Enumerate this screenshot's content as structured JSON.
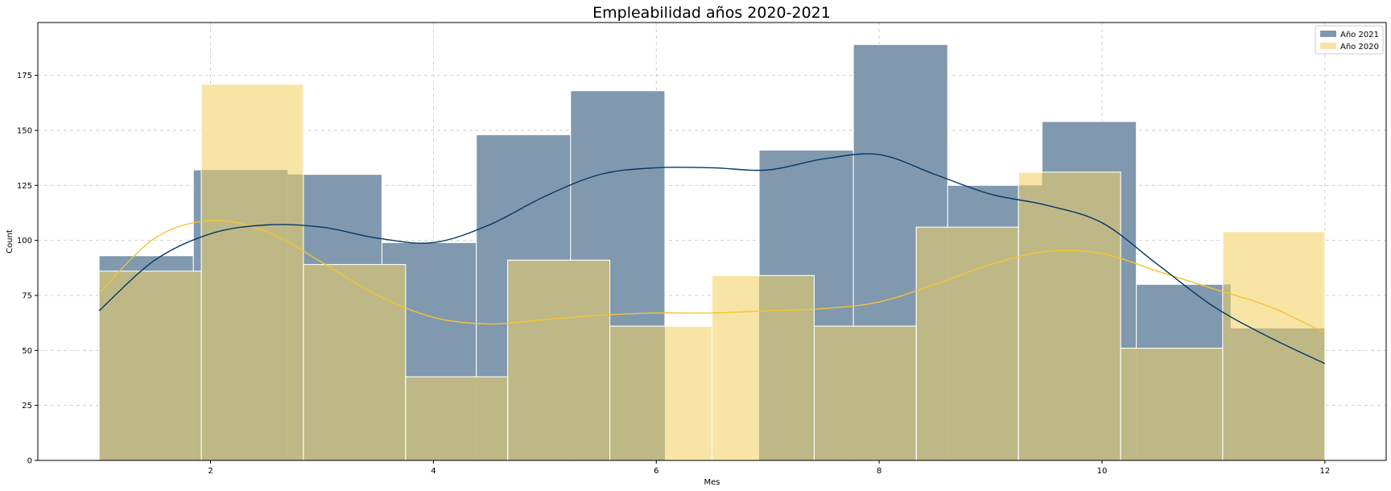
{
  "chart_data": {
    "type": "bar",
    "title": "Empleabilidad años 2020-2021",
    "xlabel": "Mes",
    "ylabel": "Count",
    "xlim": [
      0.45,
      12.55
    ],
    "ylim": [
      0,
      199
    ],
    "xticks": [
      2,
      4,
      6,
      8,
      10,
      12
    ],
    "yticks": [
      0,
      25,
      50,
      75,
      100,
      125,
      150,
      175
    ],
    "grid": true,
    "legend_position": "top-right",
    "series": [
      {
        "name": "Año 2021",
        "color": "#033866",
        "bar_color": "#8199af",
        "bins": [
          {
            "x0": 1.0,
            "x1": 1.846,
            "value": 93
          },
          {
            "x0": 1.846,
            "x1": 2.692,
            "value": 132
          },
          {
            "x0": 2.692,
            "x1": 3.538,
            "value": 130
          },
          {
            "x0": 3.538,
            "x1": 4.385,
            "value": 99
          },
          {
            "x0": 4.385,
            "x1": 5.231,
            "value": 148
          },
          {
            "x0": 5.231,
            "x1": 6.077,
            "value": 168
          },
          {
            "x0": 6.077,
            "x1": 6.923,
            "value": 0
          },
          {
            "x0": 6.923,
            "x1": 7.769,
            "value": 141
          },
          {
            "x0": 7.769,
            "x1": 8.615,
            "value": 189
          },
          {
            "x0": 8.615,
            "x1": 9.462,
            "value": 125
          },
          {
            "x0": 9.462,
            "x1": 10.308,
            "value": 154
          },
          {
            "x0": 10.308,
            "x1": 11.154,
            "value": 80
          },
          {
            "x0": 11.154,
            "x1": 12.0,
            "value": 60
          }
        ],
        "kde": [
          [
            1,
            68
          ],
          [
            1.5,
            91
          ],
          [
            2,
            103
          ],
          [
            2.5,
            107
          ],
          [
            3,
            106
          ],
          [
            3.5,
            101
          ],
          [
            4,
            99
          ],
          [
            4.5,
            107
          ],
          [
            5,
            120
          ],
          [
            5.5,
            130
          ],
          [
            6,
            133
          ],
          [
            6.5,
            133
          ],
          [
            7,
            132
          ],
          [
            7.5,
            137
          ],
          [
            8,
            139
          ],
          [
            8.5,
            130
          ],
          [
            9,
            121
          ],
          [
            9.5,
            116
          ],
          [
            10,
            108
          ],
          [
            10.5,
            89
          ],
          [
            11,
            70
          ],
          [
            11.5,
            56
          ],
          [
            12,
            44
          ]
        ]
      },
      {
        "name": "Año 2020",
        "color": "#f5c431",
        "bar_color": "#f8e5a6",
        "bins": [
          {
            "x0": 1.0,
            "x1": 1.917,
            "value": 86
          },
          {
            "x0": 1.917,
            "x1": 2.833,
            "value": 171
          },
          {
            "x0": 2.833,
            "x1": 3.75,
            "value": 89
          },
          {
            "x0": 3.75,
            "x1": 4.667,
            "value": 38
          },
          {
            "x0": 4.667,
            "x1": 5.583,
            "value": 91
          },
          {
            "x0": 5.583,
            "x1": 6.5,
            "value": 61
          },
          {
            "x0": 6.5,
            "x1": 7.417,
            "value": 84
          },
          {
            "x0": 7.417,
            "x1": 8.333,
            "value": 61
          },
          {
            "x0": 8.333,
            "x1": 9.25,
            "value": 106
          },
          {
            "x0": 9.25,
            "x1": 10.167,
            "value": 131
          },
          {
            "x0": 10.167,
            "x1": 11.083,
            "value": 51
          },
          {
            "x0": 11.083,
            "x1": 12.0,
            "value": 104
          }
        ],
        "kde": [
          [
            1,
            76
          ],
          [
            1.5,
            101
          ],
          [
            2,
            109
          ],
          [
            2.5,
            104
          ],
          [
            3,
            90
          ],
          [
            3.5,
            75
          ],
          [
            4,
            65
          ],
          [
            4.5,
            62
          ],
          [
            5,
            64
          ],
          [
            5.5,
            66
          ],
          [
            6,
            67
          ],
          [
            6.5,
            67
          ],
          [
            7,
            68
          ],
          [
            7.5,
            69
          ],
          [
            8,
            72
          ],
          [
            8.5,
            80
          ],
          [
            9,
            89
          ],
          [
            9.5,
            95
          ],
          [
            10,
            94
          ],
          [
            10.5,
            86
          ],
          [
            11,
            78
          ],
          [
            11.5,
            70
          ],
          [
            12,
            58
          ]
        ]
      }
    ],
    "overlap_color": "#bdb886"
  }
}
